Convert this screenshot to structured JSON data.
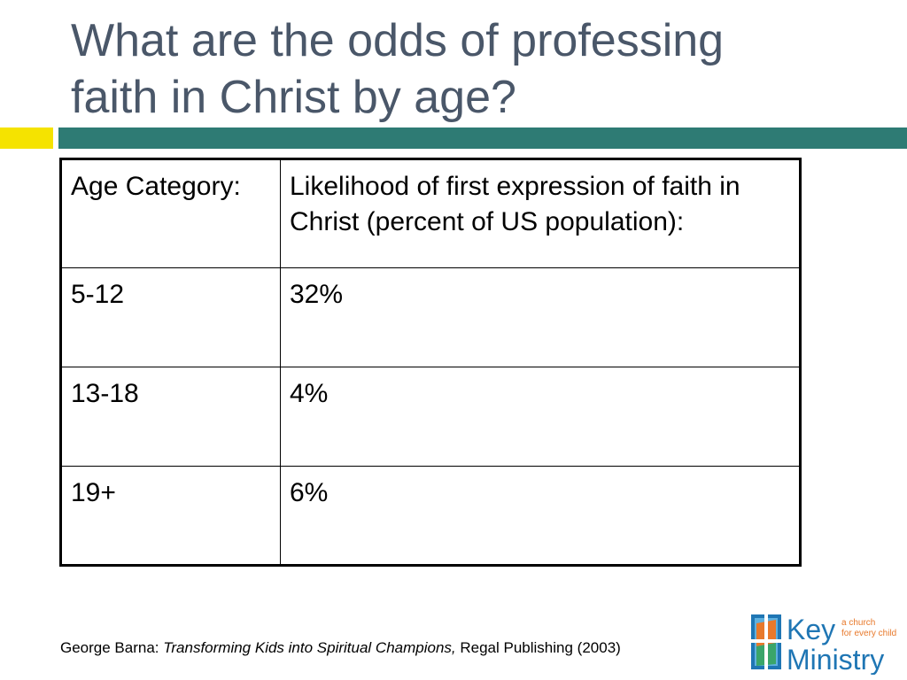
{
  "slide": {
    "title_line1": "What are the odds of professing",
    "title_line2": "faith in Christ by age?"
  },
  "table": {
    "headers": [
      "Age Category:",
      "Likelihood of first expression of faith in Christ (percent of US population):"
    ],
    "rows": [
      {
        "age": "5-12",
        "likelihood": "32%"
      },
      {
        "age": "13-18",
        "likelihood": "4%"
      },
      {
        "age": "19+",
        "likelihood": "6%"
      }
    ]
  },
  "citation": {
    "author": "George Barna: ",
    "book": "Transforming Kids into Spiritual Champions,",
    "publisher": " Regal Publishing (2003)"
  },
  "logo": {
    "line1": "Key",
    "line2": "Ministry",
    "tagline1": "a church",
    "tagline2": "for every child"
  },
  "colors": {
    "title": "#4a5769",
    "accent_bar": "#2e7b74",
    "accent_yellow": "#f5e300",
    "logo_blue": "#1f76b4",
    "logo_orange": "#e8792b",
    "logo_green": "#3aa56a"
  }
}
